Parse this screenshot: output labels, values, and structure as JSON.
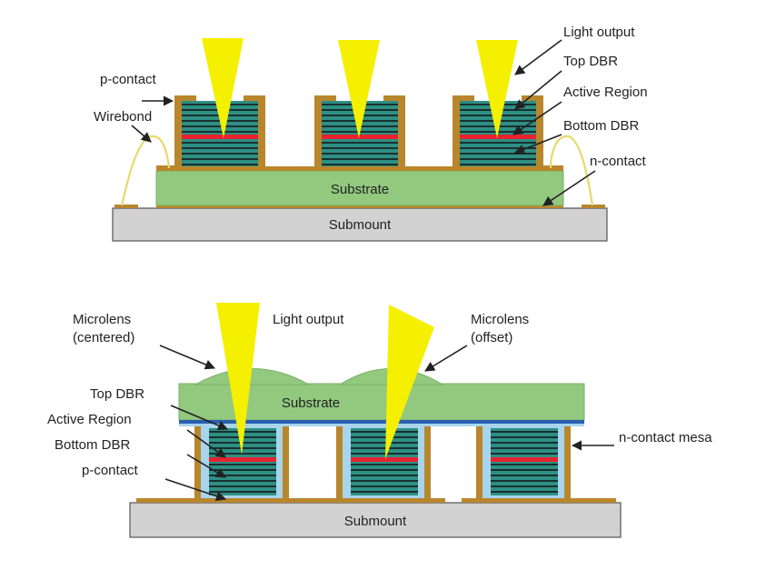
{
  "colors": {
    "contact": "#b8862d",
    "contact_dark": "#8a6316",
    "dbr": "#2e8f84",
    "dbr_line": "#111111",
    "active": "#e8232f",
    "substrate": "#93c97f",
    "submount": "#d2d2d2",
    "beam": "#f5ef00",
    "oxide": "#a8d4ec",
    "blue_line": "#2a5fb0",
    "wire": "#f4e98c"
  },
  "top_diagram": {
    "labels": {
      "light_output": "Light output",
      "top_dbr": "Top DBR",
      "active_region": "Active Region",
      "bottom_dbr": "Bottom DBR",
      "n_contact": "n-contact",
      "p_contact": "p-contact",
      "wirebond": "Wirebond",
      "substrate": "Substrate",
      "submount": "Submount"
    }
  },
  "bottom_diagram": {
    "labels": {
      "microlens_centered": [
        "Microlens",
        "(centered)"
      ],
      "light_output": "Light output",
      "microlens_offset": [
        "Microlens",
        "(offset)"
      ],
      "substrate": "Substrate",
      "top_dbr": "Top DBR",
      "active_region": "Active Region",
      "bottom_dbr": "Bottom DBR",
      "p_contact": "p-contact",
      "n_contact_mesa": "n-contact mesa",
      "submount": "Submount"
    }
  }
}
